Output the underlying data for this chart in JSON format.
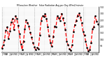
{
  "title": "Milwaukee Weather  Solar Radiation Avg per Day W/m2/minute",
  "line_color": "#ff0000",
  "dot_color": "#000000",
  "background_color": "#ffffff",
  "grid_color": "#888888",
  "ylim": [
    0,
    350
  ],
  "ytick_vals": [
    50,
    100,
    150,
    200,
    250,
    300,
    350
  ],
  "ytick_labels": [
    "50",
    "100",
    "150",
    "200",
    "250",
    "300",
    "350"
  ],
  "values": [
    30,
    55,
    95,
    170,
    195,
    105,
    165,
    235,
    260,
    175,
    280,
    260,
    210,
    145,
    65,
    20,
    85,
    180,
    250,
    230,
    200,
    155,
    115,
    75,
    40,
    20,
    35,
    25,
    130,
    245,
    285,
    275,
    300,
    260,
    195,
    125,
    75,
    45,
    120,
    200,
    195,
    280,
    265,
    245,
    300,
    265,
    230,
    175,
    85,
    55,
    25,
    15,
    55,
    160,
    215,
    245,
    285,
    305,
    270,
    230,
    160,
    130,
    85,
    35,
    10,
    20,
    75,
    180,
    195,
    280,
    240,
    220
  ],
  "num_points": 72,
  "grid_lines_x": [
    0,
    12,
    24,
    36,
    48,
    60,
    72
  ]
}
